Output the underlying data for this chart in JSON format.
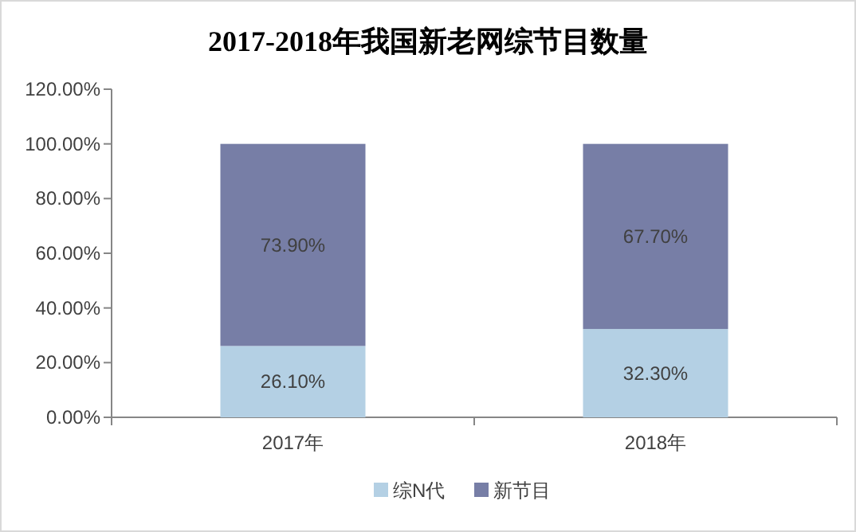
{
  "chart_data": {
    "type": "bar",
    "title": "2017-2018年我国新老网综节目数量",
    "stacked": true,
    "categories": [
      "2017年",
      "2018年"
    ],
    "series": [
      {
        "name": "综N代",
        "color": "#b4d0e4",
        "values": [
          26.1,
          32.3
        ],
        "value_labels": [
          "26.10%",
          "32.30%"
        ]
      },
      {
        "name": "新节目",
        "color": "#777ea6",
        "values": [
          73.9,
          67.7
        ],
        "value_labels": [
          "73.90%",
          "67.70%"
        ]
      }
    ],
    "ylim": [
      0,
      120
    ],
    "yticks": [
      {
        "value": 0,
        "label": "0.00%"
      },
      {
        "value": 20,
        "label": "20.00%"
      },
      {
        "value": 40,
        "label": "40.00%"
      },
      {
        "value": 60,
        "label": "60.00%"
      },
      {
        "value": 80,
        "label": "80.00%"
      },
      {
        "value": 100,
        "label": "100.00%"
      },
      {
        "value": 120,
        "label": "120.00%"
      }
    ],
    "legend": "bottom",
    "grid": false
  }
}
